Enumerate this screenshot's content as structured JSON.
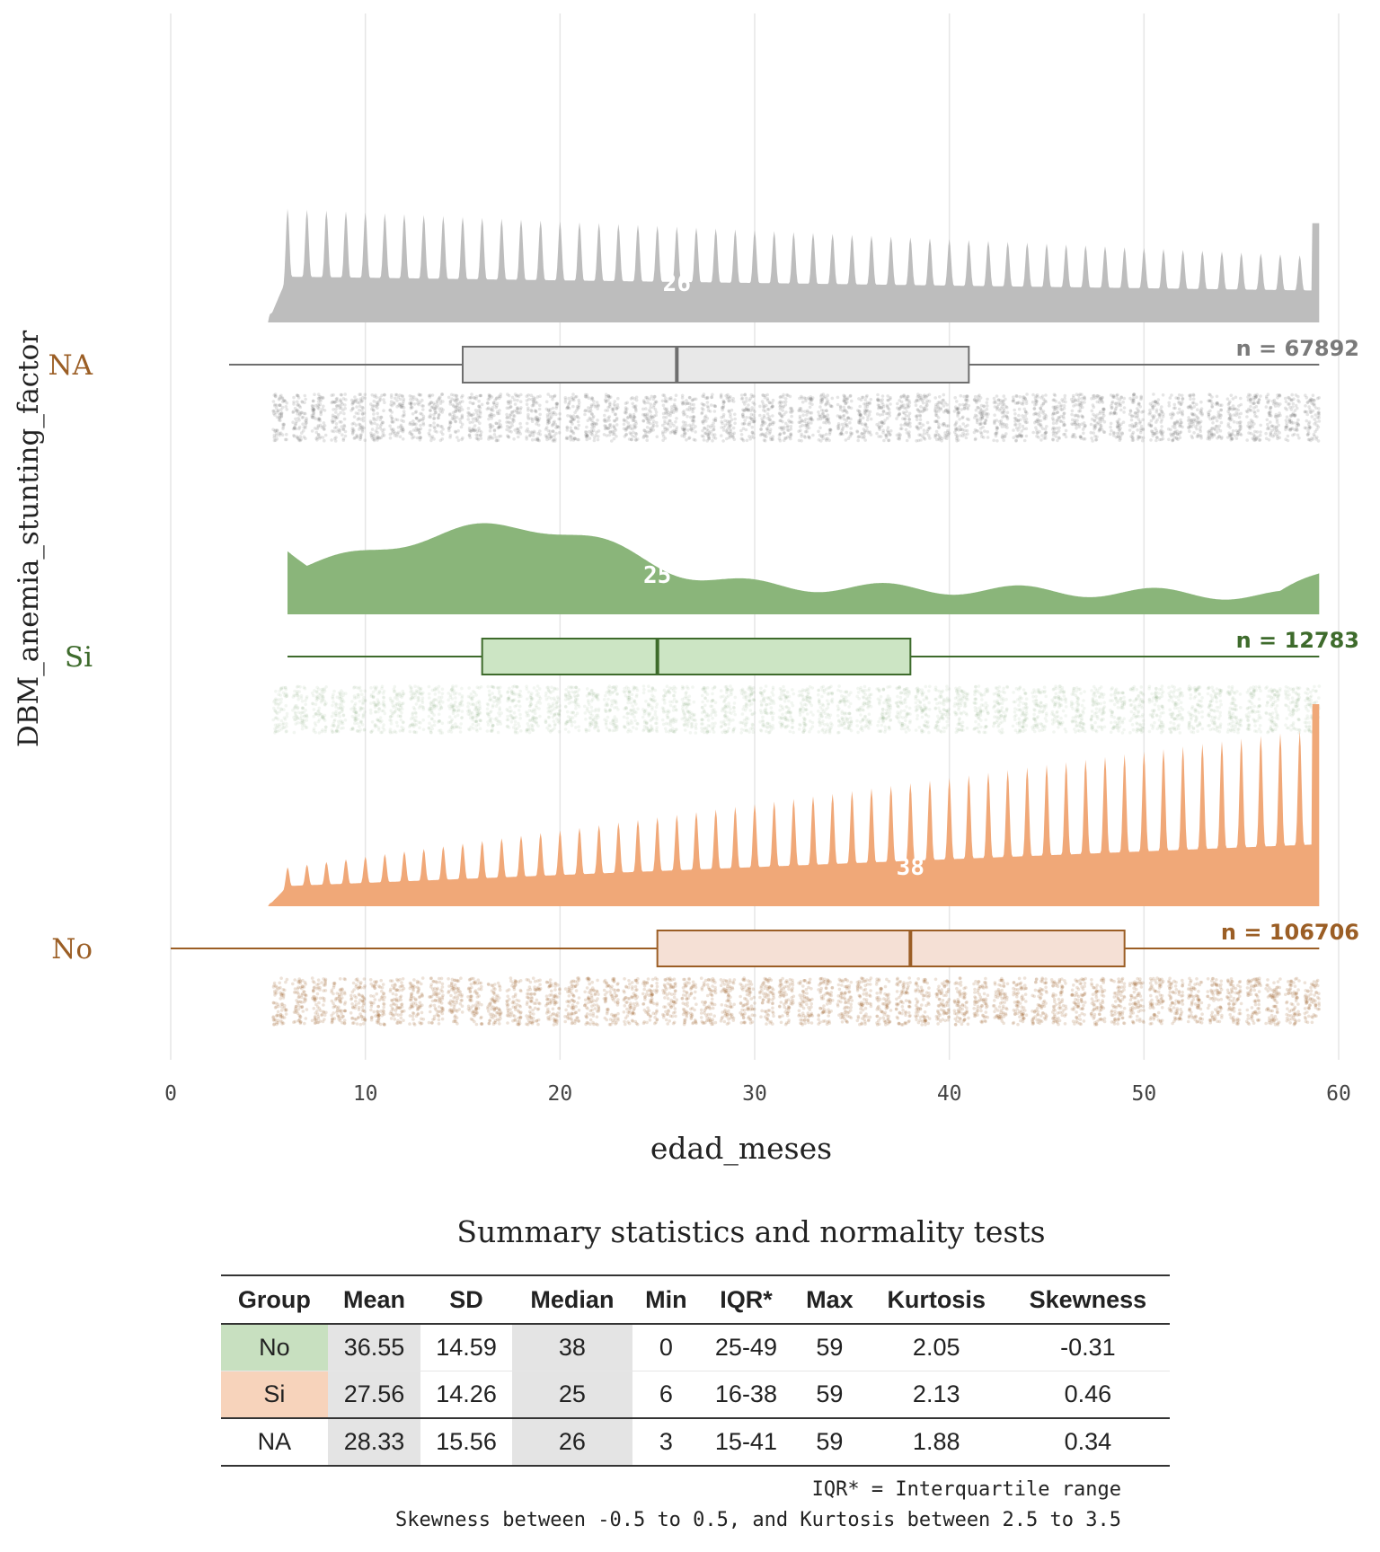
{
  "chart_data": {
    "type": "raincloud",
    "xlabel": "edad_meses",
    "ylabel": "DBM_anemia_stunting_factor",
    "xlim": [
      0,
      60
    ],
    "xticks": [
      0,
      10,
      20,
      30,
      40,
      50,
      60
    ],
    "grid": true,
    "groups": [
      {
        "name": "NA",
        "n_label": "n = 67892",
        "median_label": "26",
        "median": 26,
        "q1": 15,
        "q3": 41,
        "whisker_low": 3,
        "whisker_high": 59,
        "density_shape": "spiky",
        "density_range": [
          5,
          59
        ],
        "colors": {
          "label": "#9b5e25",
          "density": "#bdbdbd",
          "box_fill": "#e8e8e8",
          "box_line": "#6e6e6e",
          "points": "#6f6f6f",
          "n_label": "#7a7a7a"
        }
      },
      {
        "name": "Si",
        "n_label": "n = 12783",
        "median_label": "25",
        "median": 25,
        "q1": 16,
        "q3": 38,
        "whisker_low": 6,
        "whisker_high": 59,
        "density_shape": "smooth",
        "density_range": [
          6,
          59
        ],
        "colors": {
          "label": "#3e6b2c",
          "density": "#8ab57a",
          "box_fill": "#cce5c4",
          "box_line": "#3e6b2c",
          "points": "#5a8a4a",
          "n_label": "#3e6b2c"
        }
      },
      {
        "name": "No",
        "n_label": "n = 106706",
        "median_label": "38",
        "median": 38,
        "q1": 25,
        "q3": 49,
        "whisker_low": 0,
        "whisker_high": 59,
        "density_shape": "spiky_rising",
        "density_range": [
          5,
          59
        ],
        "colors": {
          "label": "#9b5e25",
          "density": "#f0a878",
          "box_fill": "#f5e0d5",
          "box_line": "#9b5e25",
          "points": "#9b5e25",
          "n_label": "#9b5e25"
        }
      }
    ]
  },
  "table": {
    "title": "Summary statistics and normality tests",
    "headers": [
      "Group",
      "Mean",
      "SD",
      "Median",
      "Min",
      "IQR*",
      "Max",
      "Kurtosis",
      "Skewness"
    ],
    "rows": [
      {
        "group": "No",
        "mean": "36.55",
        "sd": "14.59",
        "median": "38",
        "min": "0",
        "iqr": "25-49",
        "max": "59",
        "kurtosis": "2.05",
        "skewness": "-0.31",
        "group_color": "#c8e0c0"
      },
      {
        "group": "Si",
        "mean": "27.56",
        "sd": "14.26",
        "median": "25",
        "min": "6",
        "iqr": "16-38",
        "max": "59",
        "kurtosis": "2.13",
        "skewness": "0.46",
        "group_color": "#f7d3bb"
      },
      {
        "group": "NA",
        "mean": "28.33",
        "sd": "15.56",
        "median": "26",
        "min": "3",
        "iqr": "15-41",
        "max": "59",
        "kurtosis": "1.88",
        "skewness": "0.34",
        "group_color": "#ffffff"
      }
    ],
    "footnote1": "IQR* = Interquartile range",
    "footnote2": "Skewness between -0.5 to 0.5, and Kurtosis between 2.5 to 3.5"
  }
}
